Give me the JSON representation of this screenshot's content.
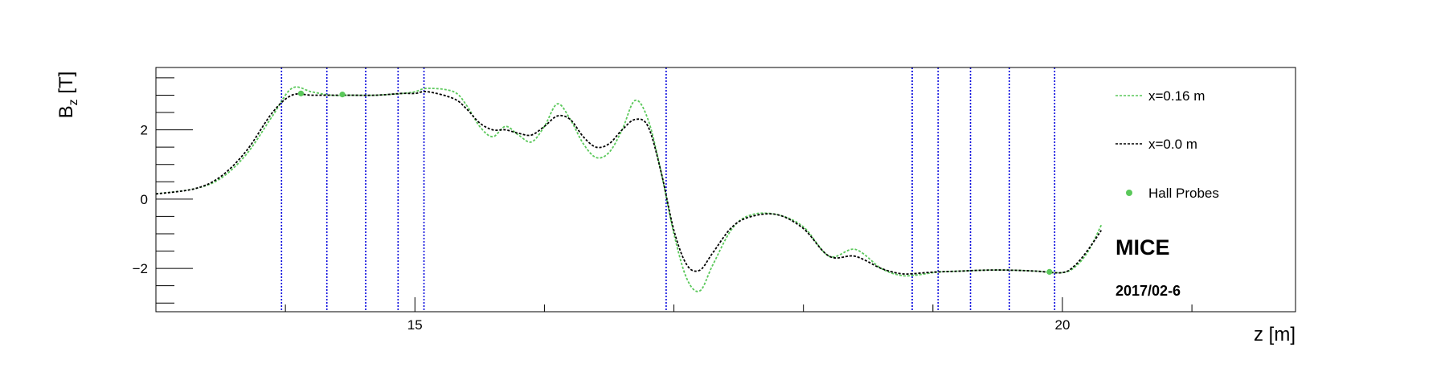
{
  "chart_data": {
    "type": "line",
    "xlabel": "z [m]",
    "ylabel_main": "B",
    "ylabel_sub": "z",
    "ylabel_unit": " [T]",
    "xlim": [
      13,
      21.8
    ],
    "ylim": [
      -3.25,
      3.8
    ],
    "x_ticks": [
      15,
      20
    ],
    "x_tick_labels": [
      "15",
      "20"
    ],
    "y_ticks": [
      -2,
      0,
      2
    ],
    "y_tick_labels": [
      "−2",
      "0",
      "2"
    ],
    "grid": false,
    "legend_position": "top-right",
    "legend": [
      {
        "label": "x=0.16 m",
        "style": "dashed-line",
        "color": "#5ac85a"
      },
      {
        "label": "x=0.0 m",
        "style": "dashed-line",
        "color": "#000000"
      },
      {
        "label": "Hall Probes",
        "style": "marker",
        "color": "#5ac85a"
      }
    ],
    "series": [
      {
        "name": "x=0.16 m",
        "color": "#5ac85a",
        "x": [
          13.0,
          13.3,
          13.5,
          13.7,
          13.9,
          14.05,
          14.2,
          14.35,
          14.5,
          14.7,
          14.9,
          15.0,
          15.1,
          15.3,
          15.4,
          15.5,
          15.6,
          15.7,
          15.8,
          15.9,
          16.0,
          16.1,
          16.2,
          16.3,
          16.4,
          16.5,
          16.6,
          16.7,
          16.8,
          16.9,
          17.0,
          17.1,
          17.2,
          17.3,
          17.45,
          17.6,
          17.8,
          18.0,
          18.2,
          18.4,
          18.6,
          18.75,
          18.85,
          18.95,
          19.05,
          19.2,
          19.4,
          19.6,
          19.8,
          20.0,
          20.1,
          20.2,
          20.3
        ],
        "y": [
          0.15,
          0.3,
          0.6,
          1.3,
          2.4,
          3.2,
          3.1,
          3.0,
          3.0,
          3.0,
          3.05,
          3.1,
          3.2,
          3.1,
          2.7,
          2.1,
          1.8,
          2.1,
          1.85,
          1.65,
          2.1,
          2.75,
          2.3,
          1.6,
          1.2,
          1.35,
          2.0,
          2.85,
          2.3,
          0.8,
          -1.0,
          -2.3,
          -2.65,
          -1.9,
          -0.85,
          -0.45,
          -0.45,
          -0.8,
          -1.65,
          -1.45,
          -2.0,
          -2.2,
          -2.2,
          -2.15,
          -2.1,
          -2.08,
          -2.05,
          -2.05,
          -2.08,
          -2.12,
          -1.95,
          -1.5,
          -0.75
        ]
      },
      {
        "name": "x=0.0 m",
        "color": "#000000",
        "x": [
          13.0,
          13.3,
          13.5,
          13.7,
          13.9,
          14.05,
          14.2,
          14.35,
          14.5,
          14.7,
          14.9,
          15.0,
          15.1,
          15.3,
          15.4,
          15.5,
          15.6,
          15.7,
          15.8,
          15.9,
          16.0,
          16.1,
          16.2,
          16.3,
          16.4,
          16.5,
          16.6,
          16.7,
          16.8,
          16.9,
          17.0,
          17.1,
          17.2,
          17.3,
          17.45,
          17.6,
          17.8,
          18.0,
          18.2,
          18.4,
          18.6,
          18.75,
          18.85,
          18.95,
          19.05,
          19.2,
          19.4,
          19.6,
          19.8,
          20.0,
          20.1,
          20.2,
          20.3
        ],
        "y": [
          0.15,
          0.3,
          0.65,
          1.4,
          2.5,
          3.0,
          3.0,
          3.0,
          3.0,
          3.0,
          3.05,
          3.05,
          3.1,
          2.9,
          2.6,
          2.2,
          2.0,
          2.0,
          1.9,
          1.85,
          2.1,
          2.4,
          2.3,
          1.8,
          1.5,
          1.6,
          2.0,
          2.3,
          2.1,
          0.8,
          -0.9,
          -1.9,
          -2.05,
          -1.55,
          -0.8,
          -0.5,
          -0.45,
          -0.85,
          -1.65,
          -1.65,
          -2.0,
          -2.15,
          -2.15,
          -2.12,
          -2.1,
          -2.08,
          -2.05,
          -2.05,
          -2.08,
          -2.12,
          -1.9,
          -1.45,
          -0.9
        ]
      }
    ],
    "hall_probes": {
      "name": "Hall Probes",
      "color": "#5ac85a",
      "x": [
        14.12,
        14.44,
        19.9
      ],
      "y": [
        3.05,
        3.02,
        -2.1
      ]
    },
    "vertical_lines": {
      "color": "#0000dd",
      "x": [
        13.97,
        14.32,
        14.62,
        14.87,
        15.07,
        16.94,
        18.84,
        19.04,
        19.29,
        19.59,
        19.94
      ]
    },
    "annotations": [
      {
        "text": "MICE",
        "style": "big"
      },
      {
        "text": "2017/02-6",
        "style": "small"
      }
    ]
  }
}
